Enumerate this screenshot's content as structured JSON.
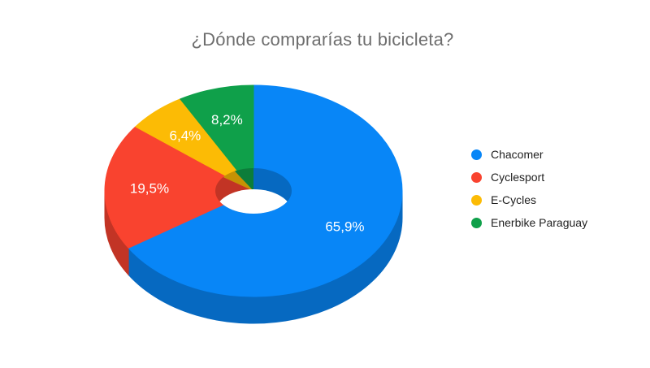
{
  "page": {
    "background": "#ffffff"
  },
  "chart_data": {
    "type": "pie",
    "variant": "3d-donut",
    "title": "¿Dónde comprarías tu bicicleta?",
    "title_color": "#6e6e6e",
    "categories": [
      "Chacomer",
      "Cyclesport",
      "E-Cycles",
      "Enerbike Paraguay"
    ],
    "values": [
      65.9,
      19.5,
      6.4,
      8.2
    ],
    "slice_labels": [
      "65,9%",
      "19,5%",
      "6,4%",
      "8,2%"
    ],
    "colors": [
      "#0886F7",
      "#F9432F",
      "#FCBB05",
      "#0FA04A"
    ],
    "slice_label_color": "#ffffff",
    "legend_position": "right",
    "legend_text_color": "#1f1f1f",
    "start_angle_deg": 0,
    "direction": "clockwise"
  }
}
